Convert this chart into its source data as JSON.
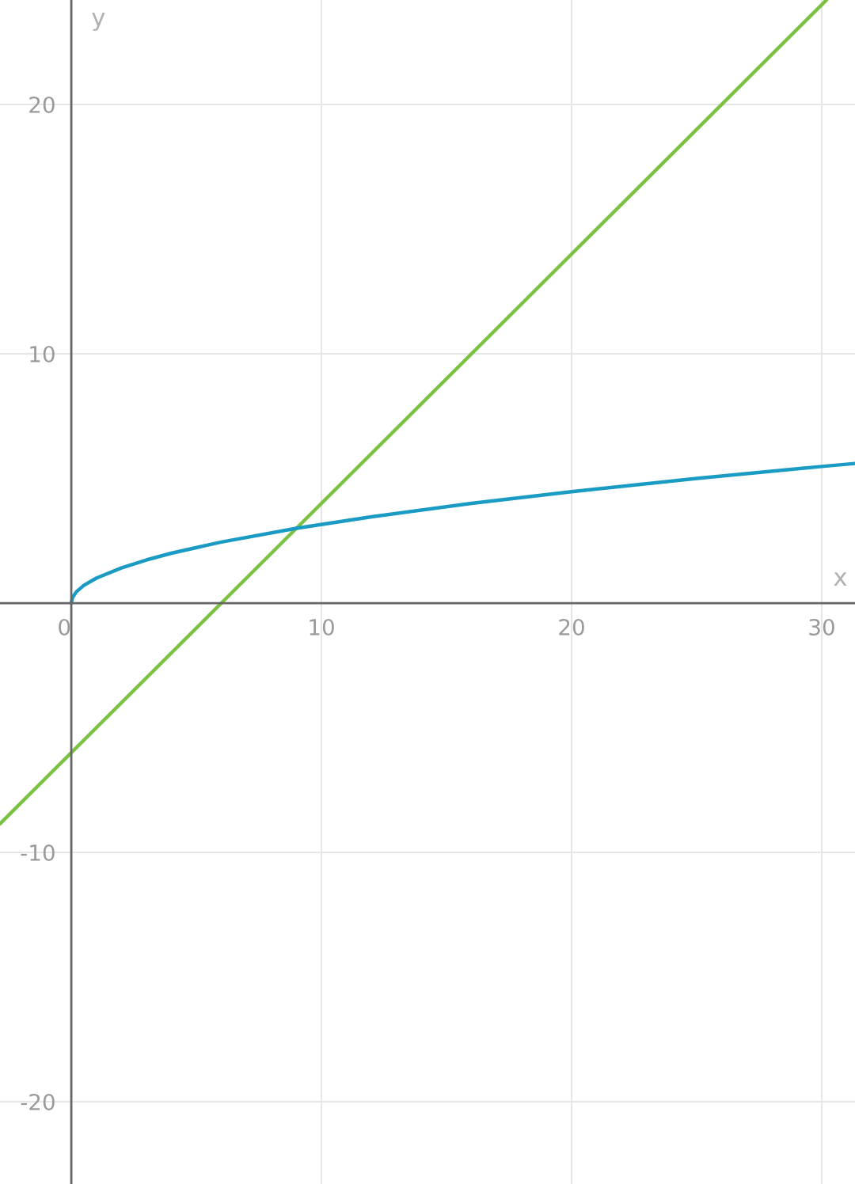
{
  "chart_data": {
    "type": "line",
    "xlabel": "x",
    "ylabel": "y",
    "xlim": [
      -2.85,
      31.33
    ],
    "ylim": [
      -23.3,
      24.19
    ],
    "xticks": [
      0,
      10,
      20,
      30
    ],
    "yticks": [
      -20,
      -10,
      {
        "value": 0,
        "label": null
      },
      10,
      20
    ],
    "grid": true,
    "marker": "none",
    "line_style": "solid",
    "series": [
      {
        "color": "#7cc242",
        "x": [
          -2.85,
          0,
          6,
          9,
          20,
          30.19
        ],
        "values": [
          -8.85,
          -6,
          0,
          3,
          14,
          24.19
        ]
      },
      {
        "color": "#1a9bc4",
        "x": [
          0,
          0.05,
          0.2,
          0.5,
          1,
          2,
          3,
          4,
          6,
          9,
          12,
          16,
          20,
          25,
          30,
          31.33
        ],
        "values": [
          0,
          0.22,
          0.45,
          0.71,
          1,
          1.41,
          1.73,
          2,
          2.45,
          3,
          3.46,
          4,
          4.47,
          5,
          5.48,
          5.6
        ]
      }
    ]
  }
}
